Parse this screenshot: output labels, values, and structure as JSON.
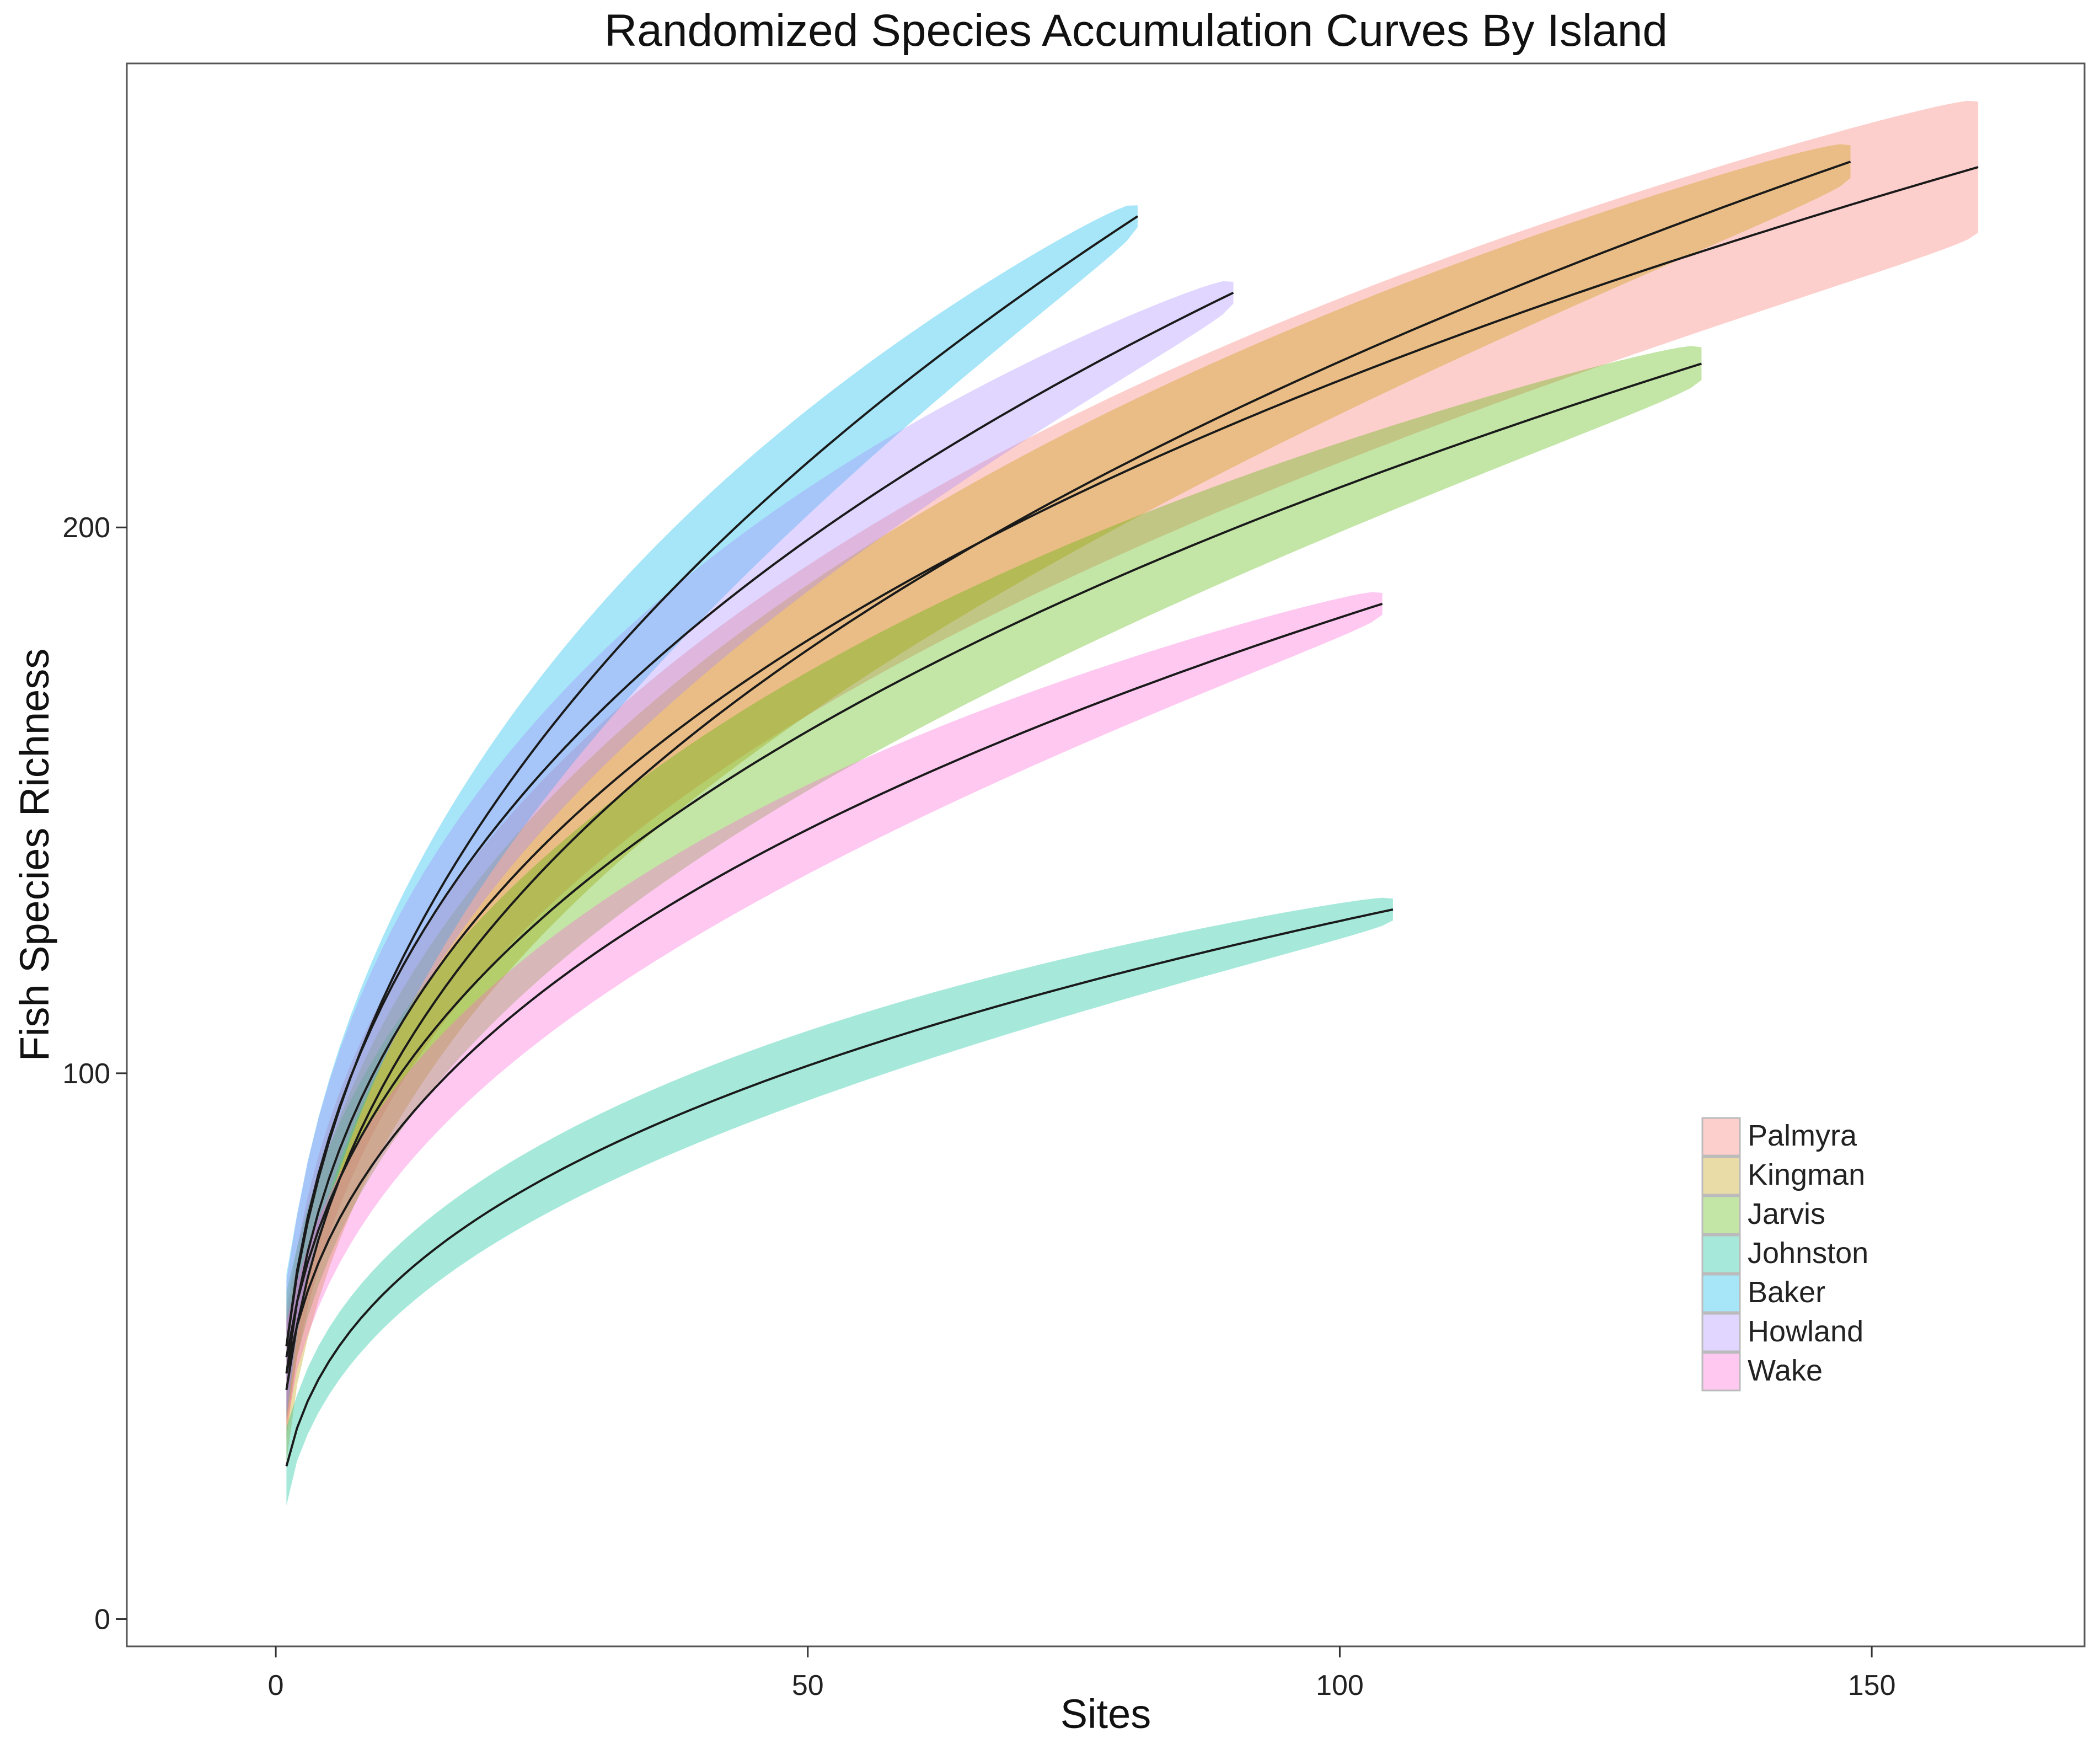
{
  "chart_data": {
    "type": "area",
    "title": "Randomized Species Accumulation Curves By Island",
    "xlabel": "Sites",
    "ylabel": "Fish Species Richness",
    "xlim": [
      -14,
      170
    ],
    "ylim": [
      -5,
      285
    ],
    "xticks": [
      0,
      50,
      100,
      150
    ],
    "yticks": [
      0,
      100,
      200
    ],
    "grid": false,
    "legend_position": "bottom-right",
    "series": [
      {
        "name": "Palmyra",
        "color": "#F8766D",
        "n": 160,
        "start": 45,
        "end": 266,
        "rate": 0.33,
        "ci_width": 10,
        "min_sites": 5,
        "s0": 0,
        "end_ci": 12
      },
      {
        "name": "Kingman",
        "color": "#C49A00",
        "n": 148,
        "start": 42,
        "end": 267,
        "rate": 0.38,
        "ci_width": 11,
        "min_sites": 8,
        "s0": 0,
        "end_ci": 3
      },
      {
        "name": "Jarvis",
        "color": "#53B400",
        "n": 134,
        "start": 48,
        "end": 230,
        "rate": 0.38,
        "ci_width": 10,
        "min_sites": 6,
        "s0": 0,
        "end_ci": 3
      },
      {
        "name": "Johnston",
        "color": "#00C094",
        "n": 105,
        "start": 28,
        "end": 130,
        "rate": 0.34,
        "ci_width": 6,
        "min_sites": 14,
        "s0": 0,
        "end_ci": 2
      },
      {
        "name": "Baker",
        "color": "#00B6EB",
        "n": 81,
        "start": 50,
        "end": 257,
        "rate": 0.42,
        "ci_width": 11,
        "min_sites": 5,
        "s0": 0,
        "end_ci": 2
      },
      {
        "name": "Howland",
        "color": "#A58AFF",
        "n": 90,
        "start": 50,
        "end": 243,
        "rate": 0.35,
        "ci_width": 10,
        "min_sites": 5,
        "s0": 0,
        "end_ci": 2
      },
      {
        "name": "Wake",
        "color": "#FB61D7",
        "n": 104,
        "start": 45,
        "end": 186,
        "rate": 0.38,
        "ci_width": 8,
        "min_sites": 5,
        "s0": 0,
        "end_ci": 2
      }
    ]
  }
}
